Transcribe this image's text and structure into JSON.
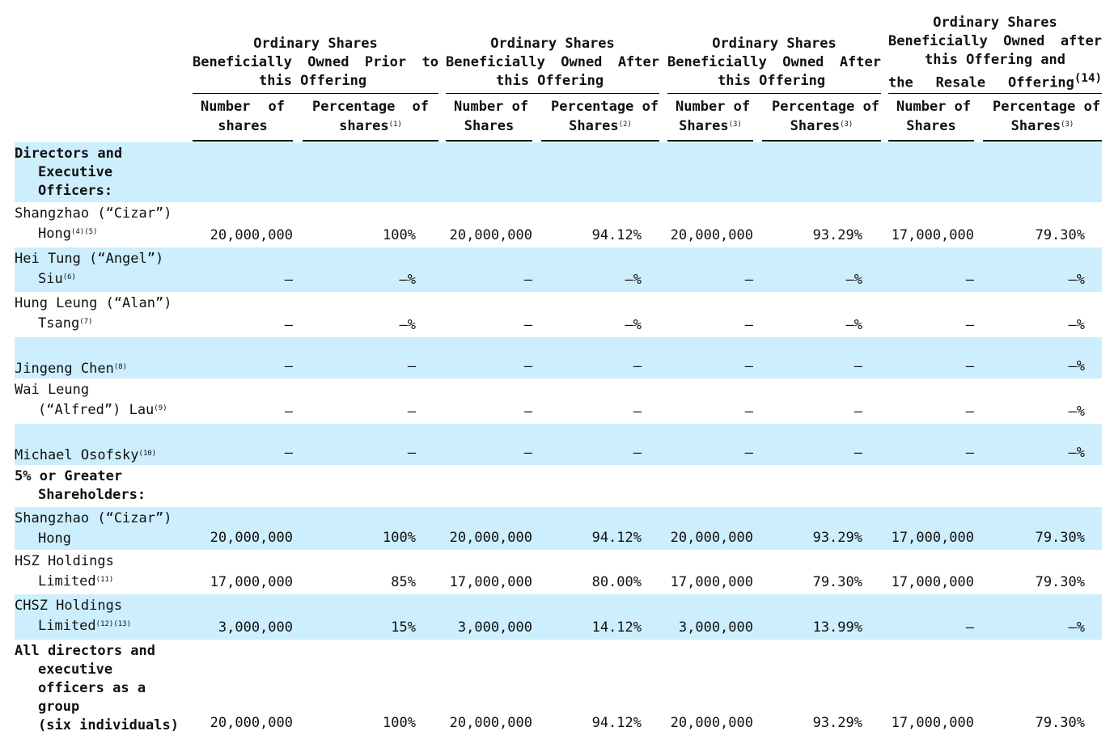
{
  "header": {
    "groups": [
      {
        "lines": [
          "Ordinary  Shares",
          "Beneficially  Owned  Prior  to",
          "this  Offering"
        ]
      },
      {
        "lines": [
          "Ordinary  Shares",
          "Beneficially  Owned  After",
          "this  Offering"
        ]
      },
      {
        "lines": [
          "Ordinary  Shares",
          "Beneficially  Owned  After",
          "this  Offering"
        ]
      },
      {
        "lines": [
          "Ordinary  Shares",
          "Beneficially  Owned  after",
          "this Offering and",
          "the  Resale  Offering"
        ],
        "note": "(14)"
      }
    ],
    "subs": [
      {
        "l1": "Number  of",
        "l2": "shares",
        "note": ""
      },
      {
        "l1": "Percentage  of",
        "l2": "shares",
        "note": "(1)"
      },
      {
        "l1": "Number  of",
        "l2": "Shares",
        "note": ""
      },
      {
        "l1": "Percentage  of",
        "l2": "Shares",
        "note": "(2)"
      },
      {
        "l1": "Number  of",
        "l2": "Shares",
        "note": "(3)"
      },
      {
        "l1": "Percentage  of",
        "l2": "Shares",
        "note": "(3)"
      },
      {
        "l1": "Number  of",
        "l2": "Shares",
        "note": ""
      },
      {
        "l1": "Percentage  of",
        "l2": "Shares",
        "note": "(3)"
      }
    ]
  },
  "sections": {
    "directors": [
      "Directors and",
      "Executive",
      "Officers:"
    ],
    "greater": [
      "5% or Greater",
      "Shareholders:"
    ],
    "group": [
      "All directors and",
      "executive",
      "officers as a",
      "group",
      "(six  individuals)"
    ]
  },
  "rows": [
    {
      "l1": "Shangzhao (“Cizar”)",
      "l2": "Hong",
      "note": "(4)(5)",
      "vals": [
        "20,000,000",
        "100%",
        "20,000,000",
        "94.12%",
        "20,000,000",
        "93.29%",
        "17,000,000",
        "79.30%"
      ]
    },
    {
      "l1": "Hei Tung (“Angel”)",
      "l2": "Siu",
      "note": "(6)",
      "vals": [
        "—",
        "—%",
        "—",
        "—%",
        "—",
        "—%",
        "—",
        "—%"
      ]
    },
    {
      "l1": "Hung Leung (“Alan”)",
      "l2": "Tsang",
      "note": "(7)",
      "vals": [
        "—",
        "—%",
        "—",
        "—%",
        "—",
        "—%",
        "—",
        "—%"
      ]
    },
    {
      "l1": "",
      "l2": "Jingeng Chen",
      "note": "(8)",
      "noindent": true,
      "vals": [
        "—",
        "—",
        "—",
        "—",
        "—",
        "—",
        "—",
        "—%"
      ]
    },
    {
      "l1": "Wai Leung",
      "l2": "(“Alfred”) Lau",
      "note": "(9)",
      "vals": [
        "—",
        "—",
        "—",
        "—",
        "—",
        "—",
        "—",
        "—%"
      ]
    },
    {
      "l1": "",
      "l2": "Michael Osofsky",
      "note": "(10)",
      "noindent": true,
      "vals": [
        "—",
        "—",
        "—",
        "—",
        "—",
        "—",
        "—",
        "—%"
      ]
    },
    {
      "l1": "Shangzhao (“Cizar”)",
      "l2": "Hong",
      "note": "",
      "vals": [
        "20,000,000",
        "100%",
        "20,000,000",
        "94.12%",
        "20,000,000",
        "93.29%",
        "17,000,000",
        "79.30%"
      ]
    },
    {
      "l1": "HSZ Holdings",
      "l2": "Limited",
      "note": "(11)",
      "vals": [
        "17,000,000",
        "85%",
        "17,000,000",
        "80.00%",
        "17,000,000",
        "79.30%",
        "17,000,000",
        "79.30%"
      ]
    },
    {
      "l1": "CHSZ Holdings",
      "l2": "Limited",
      "note": "(12)(13)",
      "vals": [
        "3,000,000",
        "15%",
        "3,000,000",
        "14.12%",
        "3,000,000",
        "13.99%",
        "—",
        "—%"
      ]
    }
  ],
  "group_vals": [
    "20,000,000",
    "100%",
    "20,000,000",
    "94.12%",
    "20,000,000",
    "93.29%",
    "17,000,000",
    "79.30%"
  ],
  "colors": {
    "shade": "#cdeefc"
  }
}
